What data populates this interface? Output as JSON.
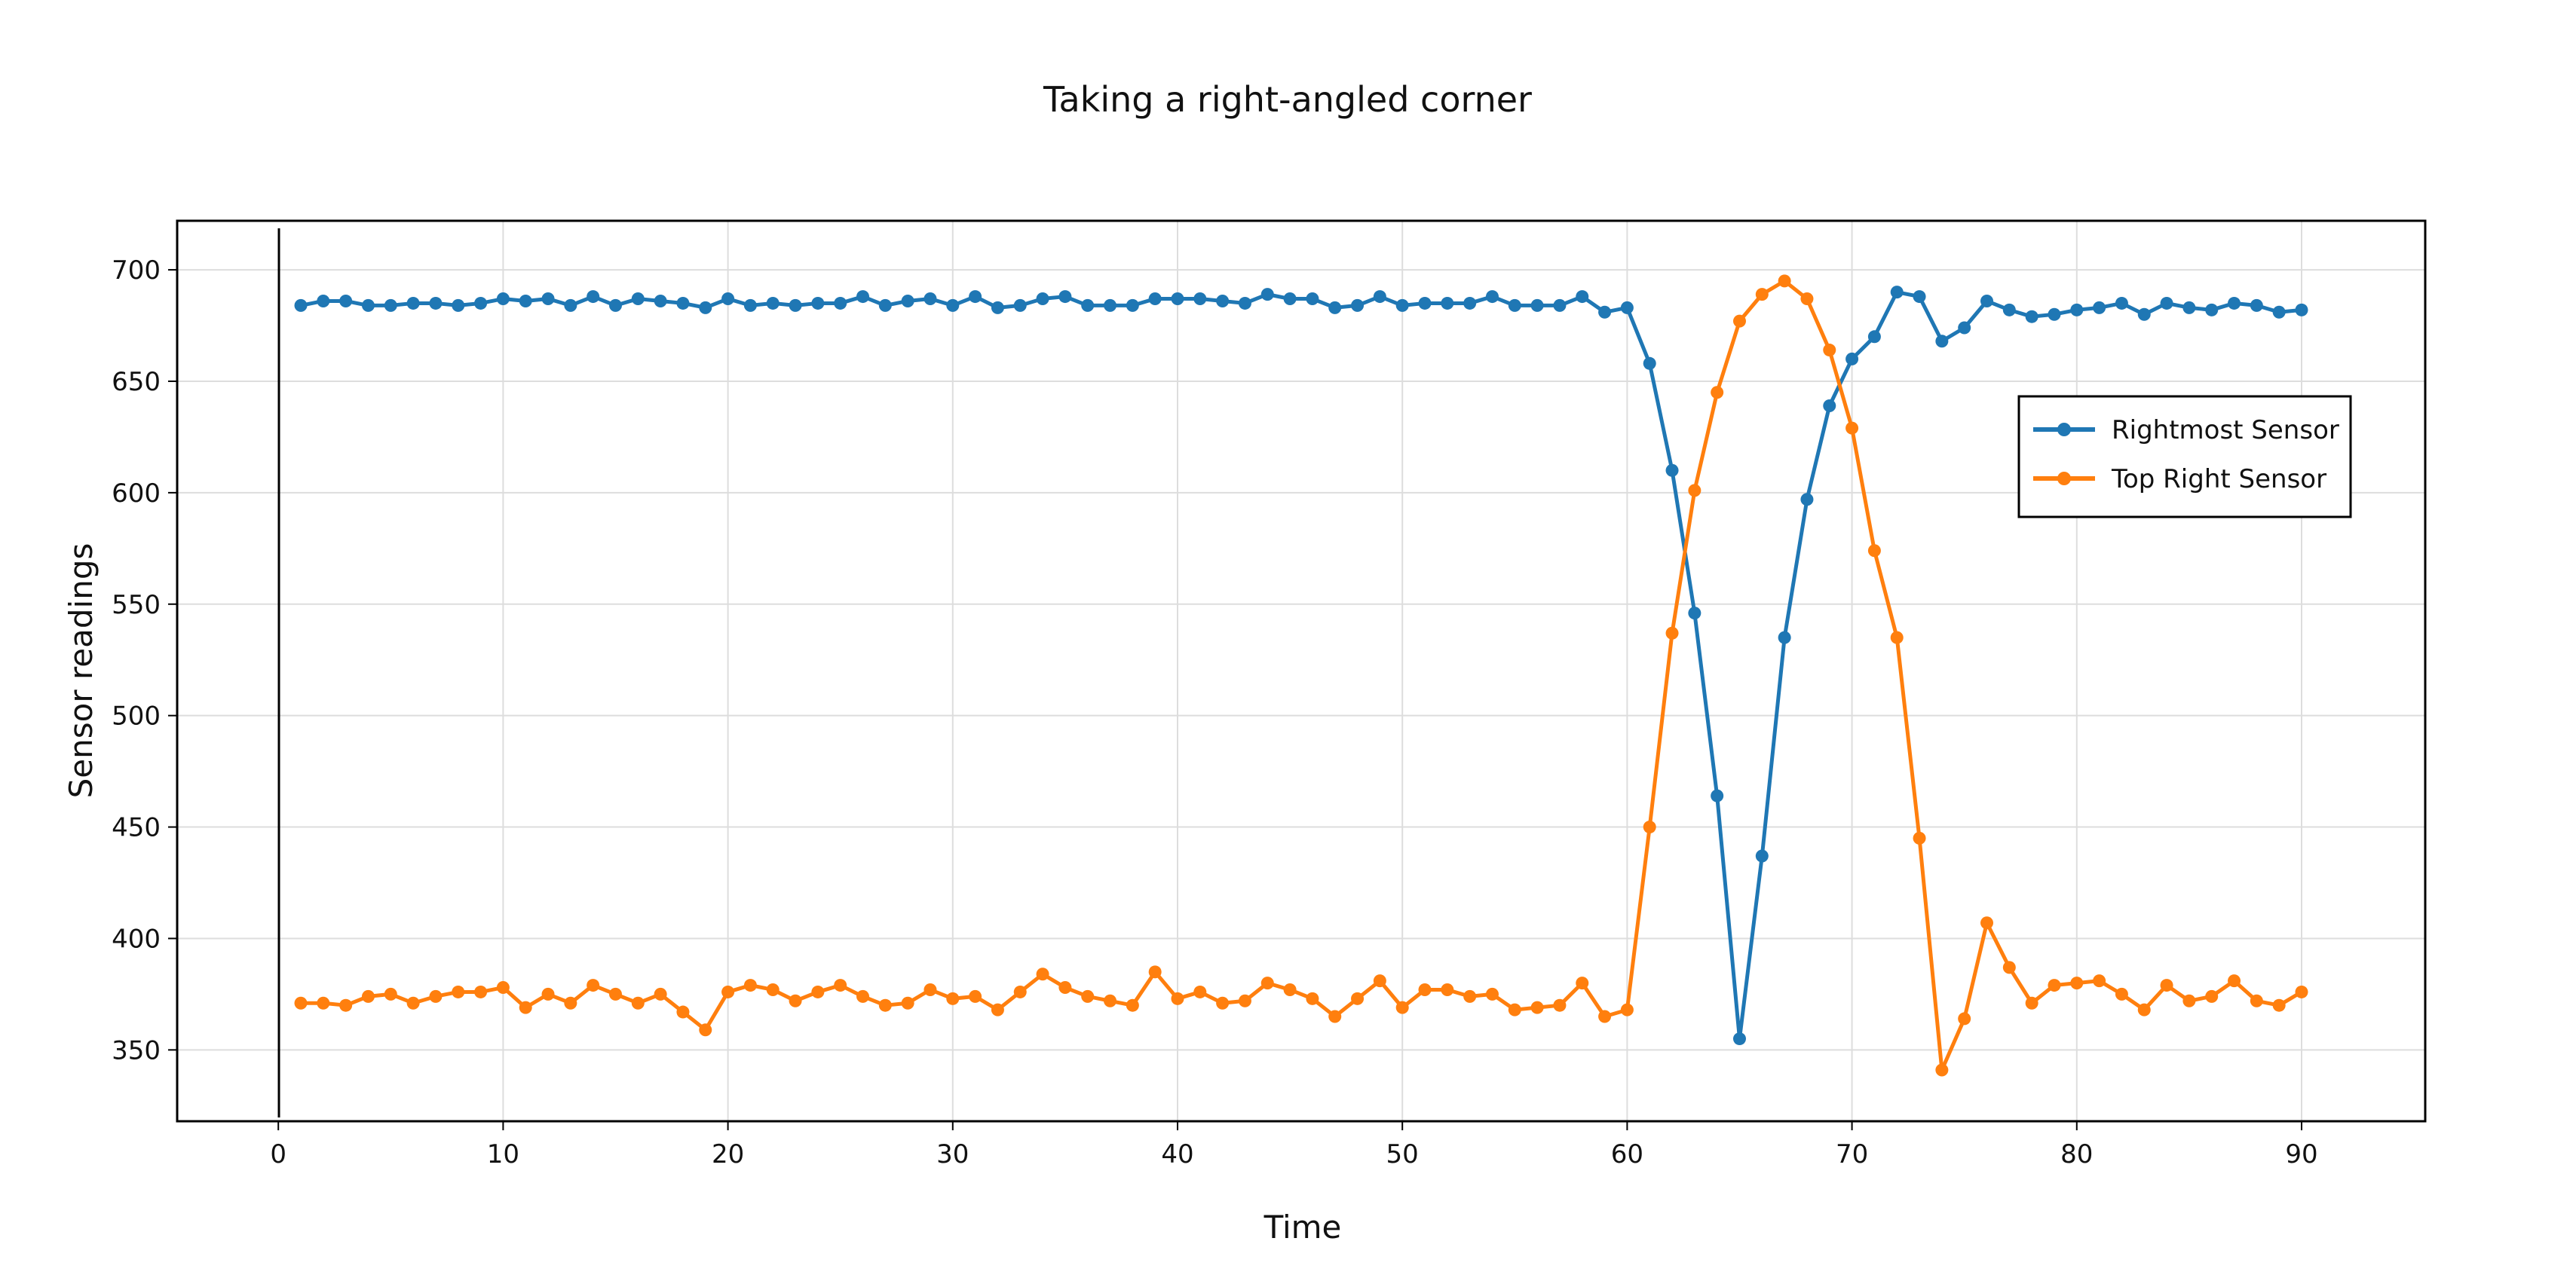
{
  "chart_data": {
    "type": "line",
    "title": "Taking a right-angled corner",
    "xlabel": "Time",
    "ylabel": "Sensor readings",
    "xlim": [
      -4.5,
      95.5
    ],
    "ylim": [
      318,
      722
    ],
    "x_ticks": [
      0,
      10,
      20,
      30,
      40,
      50,
      60,
      70,
      80,
      90
    ],
    "y_ticks": [
      350,
      400,
      450,
      500,
      550,
      600,
      650,
      700
    ],
    "grid": true,
    "legend_position": "top-right",
    "colors": {
      "Rightmost Sensor": "#1f77b4",
      "Top Right Sensor": "#ff7f0e"
    },
    "x": [
      1,
      2,
      3,
      4,
      5,
      6,
      7,
      8,
      9,
      10,
      11,
      12,
      13,
      14,
      15,
      16,
      17,
      18,
      19,
      20,
      21,
      22,
      23,
      24,
      25,
      26,
      27,
      28,
      29,
      30,
      31,
      32,
      33,
      34,
      35,
      36,
      37,
      38,
      39,
      40,
      41,
      42,
      43,
      44,
      45,
      46,
      47,
      48,
      49,
      50,
      51,
      52,
      53,
      54,
      55,
      56,
      57,
      58,
      59,
      60,
      61,
      62,
      63,
      64,
      65,
      66,
      67,
      68,
      69,
      70,
      71,
      72,
      73,
      74,
      75,
      76,
      77,
      78,
      79,
      80,
      81,
      82,
      83,
      84,
      85,
      86,
      87,
      88,
      89,
      90
    ],
    "series": [
      {
        "name": "Rightmost Sensor",
        "values": [
          684,
          686,
          686,
          684,
          684,
          685,
          685,
          684,
          685,
          687,
          686,
          687,
          684,
          688,
          684,
          687,
          686,
          685,
          683,
          687,
          684,
          685,
          684,
          685,
          685,
          688,
          684,
          686,
          687,
          684,
          688,
          683,
          684,
          687,
          688,
          684,
          684,
          684,
          687,
          687,
          687,
          686,
          685,
          689,
          687,
          687,
          683,
          684,
          688,
          684,
          685,
          685,
          685,
          688,
          684,
          684,
          684,
          688,
          681,
          683,
          658,
          610,
          546,
          464,
          355,
          437,
          535,
          597,
          639,
          660,
          670,
          690,
          688,
          668,
          674,
          686,
          682,
          679,
          680,
          682,
          683,
          685,
          680,
          685,
          683,
          682,
          685,
          684,
          681,
          682
        ]
      },
      {
        "name": "Top Right Sensor",
        "values": [
          371,
          371,
          370,
          374,
          375,
          371,
          374,
          376,
          376,
          378,
          369,
          375,
          371,
          379,
          375,
          371,
          375,
          367,
          359,
          376,
          379,
          377,
          372,
          376,
          379,
          374,
          370,
          371,
          377,
          373,
          374,
          368,
          376,
          384,
          378,
          374,
          372,
          370,
          385,
          373,
          376,
          371,
          372,
          380,
          377,
          373,
          365,
          373,
          381,
          369,
          377,
          377,
          374,
          375,
          368,
          369,
          370,
          380,
          365,
          368,
          450,
          537,
          601,
          645,
          677,
          689,
          695,
          687,
          664,
          629,
          574,
          535,
          445,
          341,
          364,
          407,
          387,
          371,
          379,
          380,
          381,
          375,
          368,
          379,
          372,
          374,
          381,
          372,
          370,
          376
        ]
      }
    ]
  }
}
